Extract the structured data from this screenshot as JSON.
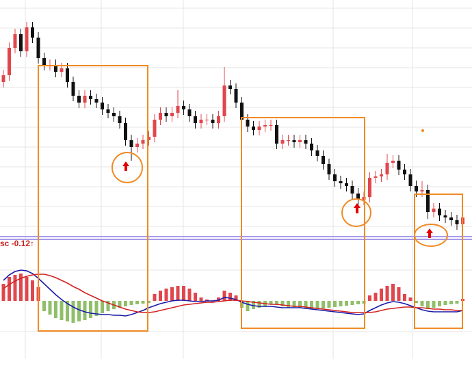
{
  "chart_data": [
    {
      "type": "candlestick",
      "open": [
        225,
        235,
        275,
        295,
        270,
        305,
        290,
        260,
        250,
        250,
        240,
        245,
        225,
        205,
        195,
        205,
        200,
        195,
        185,
        180,
        175,
        165,
        140,
        130,
        135,
        140,
        145,
        170,
        180,
        175,
        180,
        190,
        185,
        175,
        165,
        170,
        170,
        165,
        175,
        220,
        215,
        195,
        170,
        160,
        155,
        160,
        162,
        162,
        135,
        140,
        140,
        137,
        140,
        135,
        125,
        117,
        105,
        90,
        80,
        77,
        73,
        62,
        53,
        57,
        85,
        87,
        90,
        107,
        110,
        97,
        90,
        73,
        65,
        67,
        35,
        40,
        30,
        27,
        23,
        17
      ],
      "high": [
        243,
        283,
        303,
        303,
        313,
        313,
        298,
        268,
        258,
        258,
        253,
        253,
        233,
        213,
        213,
        213,
        208,
        203,
        193,
        188,
        183,
        173,
        148,
        143,
        148,
        153,
        178,
        188,
        188,
        188,
        213,
        198,
        193,
        183,
        178,
        178,
        178,
        183,
        247,
        228,
        223,
        203,
        178,
        168,
        168,
        170,
        170,
        170,
        148,
        148,
        148,
        148,
        148,
        143,
        133,
        125,
        113,
        98,
        88,
        85,
        81,
        70,
        65,
        93,
        95,
        98,
        120,
        118,
        118,
        105,
        98,
        81,
        80,
        75,
        48,
        48,
        38,
        35,
        31,
        35
      ],
      "low": [
        217,
        227,
        267,
        262,
        262,
        282,
        252,
        242,
        242,
        232,
        232,
        217,
        197,
        187,
        187,
        192,
        187,
        177,
        172,
        167,
        157,
        132,
        110,
        122,
        127,
        132,
        137,
        162,
        167,
        167,
        172,
        177,
        167,
        157,
        157,
        162,
        157,
        157,
        167,
        207,
        187,
        162,
        152,
        147,
        147,
        152,
        154,
        127,
        127,
        132,
        129,
        129,
        127,
        117,
        109,
        97,
        82,
        72,
        69,
        65,
        54,
        45,
        45,
        49,
        77,
        79,
        82,
        99,
        89,
        82,
        65,
        57,
        57,
        25,
        27,
        22,
        19,
        15,
        9,
        9
      ],
      "close": [
        235,
        275,
        295,
        270,
        305,
        290,
        260,
        250,
        250,
        240,
        245,
        225,
        205,
        195,
        205,
        200,
        195,
        185,
        180,
        175,
        165,
        140,
        130,
        135,
        140,
        145,
        170,
        180,
        175,
        180,
        190,
        185,
        175,
        165,
        170,
        170,
        165,
        175,
        220,
        215,
        195,
        170,
        160,
        155,
        160,
        162,
        162,
        135,
        140,
        140,
        137,
        140,
        135,
        125,
        117,
        105,
        90,
        80,
        77,
        73,
        62,
        53,
        57,
        85,
        87,
        90,
        107,
        110,
        97,
        90,
        73,
        65,
        67,
        35,
        40,
        30,
        27,
        23,
        17,
        27
      ],
      "ylim": [
        0,
        345
      ],
      "up_color": "#e0474c",
      "down_color": "#111111"
    },
    {
      "type": "macd",
      "label": "sc -0.12↑",
      "ylim": [
        -80,
        85
      ],
      "histogram": {
        "up_color": "#e0474c",
        "down_color": "#8fbf6a",
        "values": [
          25,
          35,
          38,
          40,
          35,
          30,
          20,
          -15,
          -20,
          -25,
          -28,
          -30,
          -32,
          -30,
          -28,
          -25,
          -22,
          -18,
          -15,
          -12,
          -10,
          -8,
          -6,
          -5,
          -4,
          -3,
          10,
          15,
          18,
          20,
          22,
          22,
          18,
          12,
          5,
          2,
          -2,
          5,
          15,
          12,
          8,
          -10,
          -15,
          -12,
          -10,
          -8,
          -5,
          -6,
          -8,
          -10,
          -9,
          -10,
          -11,
          -12,
          -12,
          -11,
          -10,
          -9,
          -8,
          -7,
          -6,
          -5,
          -4,
          8,
          12,
          18,
          22,
          25,
          20,
          10,
          5,
          -3,
          -8,
          -12,
          -10,
          -8,
          -6,
          -5,
          -4,
          3
        ]
      },
      "lines": [
        {
          "color": "#1a1aa8",
          "values": [
            30,
            38,
            43,
            45,
            44,
            40,
            33,
            25,
            17,
            9,
            2,
            -4,
            -9,
            -13,
            -16,
            -18,
            -19,
            -20,
            -20,
            -21,
            -21,
            -22,
            -20,
            -17,
            -14,
            -10,
            -7,
            -4,
            -2,
            0,
            1,
            1,
            0,
            -1,
            -1,
            0,
            0,
            1,
            5,
            4,
            2,
            -2,
            -5,
            -7,
            -8,
            -8,
            -8,
            -9,
            -10,
            -10,
            -10,
            -10,
            -11,
            -12,
            -13,
            -14,
            -15,
            -16,
            -17,
            -18,
            -19,
            -20,
            -19,
            -14,
            -10,
            -6,
            -3,
            -1,
            -2,
            -4,
            -7,
            -10,
            -13,
            -15,
            -16,
            -16,
            -16,
            -16,
            -16,
            -14
          ]
        },
        {
          "color": "#d42020",
          "values": [
            18,
            24,
            29,
            33,
            36,
            38,
            39,
            39,
            37,
            34,
            30,
            26,
            21,
            17,
            12,
            8,
            4,
            0,
            -3,
            -6,
            -9,
            -12,
            -14,
            -16,
            -17,
            -17,
            -16,
            -14,
            -12,
            -10,
            -8,
            -6,
            -5,
            -4,
            -3,
            -2,
            -2,
            -1,
            0,
            1,
            1,
            0,
            -1,
            -2,
            -3,
            -4,
            -5,
            -5,
            -6,
            -7,
            -8,
            -8,
            -9,
            -10,
            -11,
            -12,
            -13,
            -14,
            -15,
            -16,
            -17,
            -17,
            -17,
            -17,
            -16,
            -14,
            -12,
            -11,
            -10,
            -9,
            -9,
            -10,
            -10,
            -11,
            -12,
            -12,
            -13,
            -13,
            -14,
            -14
          ]
        }
      ]
    }
  ]
}
